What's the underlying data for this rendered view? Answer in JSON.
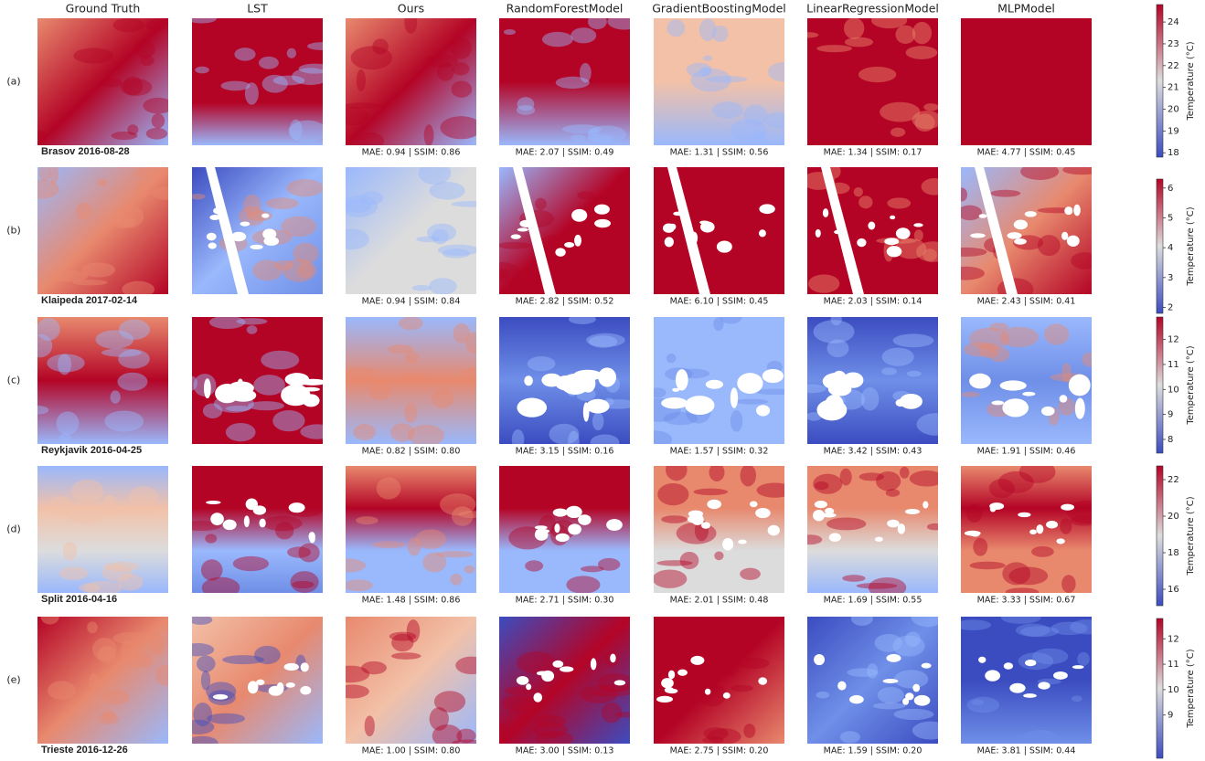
{
  "columns": [
    "Ground Truth",
    "LST",
    "Ours",
    "RandomForestModel",
    "GradientBoostingModel",
    "LinearRegressionModel",
    "MLPModel"
  ],
  "rows": [
    {
      "label": "(a)",
      "caption": "Brasov 2016-08-28",
      "metrics": [
        "MAE: 0.94 | SSIM: 0.86",
        "MAE: 2.07 | SSIM: 0.49",
        "MAE: 1.31 | SSIM: 0.56",
        "MAE: 1.34 | SSIM: 0.17",
        "MAE: 4.77 | SSIM: 0.45"
      ],
      "colorbar": {
        "label": "Temperature (°C)",
        "lim": [
          17.8,
          24.8
        ],
        "ticks": [
          18,
          19,
          20,
          21,
          22,
          23,
          24
        ]
      }
    },
    {
      "label": "(b)",
      "caption": "Klaipeda 2017-02-14",
      "metrics": [
        "MAE: 0.94 | SSIM: 0.84",
        "MAE: 2.82 | SSIM: 0.52",
        "MAE: 6.10 | SSIM: 0.45",
        "MAE: 2.03 | SSIM: 0.14",
        "MAE: 2.43 | SSIM: 0.41"
      ],
      "colorbar": {
        "label": "Temperature (°C)",
        "lim": [
          1.8,
          6.3
        ],
        "ticks": [
          2,
          3,
          4,
          5,
          6
        ]
      }
    },
    {
      "label": "(c)",
      "caption": "Reykjavik 2016-04-25",
      "metrics": [
        "MAE: 0.82 | SSIM: 0.80",
        "MAE: 3.15 | SSIM: 0.16",
        "MAE: 1.57 | SSIM: 0.32",
        "MAE: 3.42 | SSIM: 0.43",
        "MAE: 1.91 | SSIM: 0.46"
      ],
      "colorbar": {
        "label": "Temperature (°C)",
        "lim": [
          7.45,
          12.9
        ],
        "ticks": [
          8,
          9,
          10,
          11,
          12
        ]
      }
    },
    {
      "label": "(d)",
      "caption": "Split 2016-04-16",
      "metrics": [
        "MAE: 1.48 | SSIM: 0.86",
        "MAE: 2.71 | SSIM: 0.30",
        "MAE: 2.01 | SSIM: 0.48",
        "MAE: 1.69 | SSIM: 0.55",
        "MAE: 3.33 | SSIM: 0.67"
      ],
      "colorbar": {
        "label": "Temperature (°C)",
        "lim": [
          15.1,
          22.75
        ],
        "ticks": [
          16,
          18,
          20,
          22
        ]
      }
    },
    {
      "label": "(e)",
      "caption": "Trieste 2016-12-26",
      "metrics": [
        "MAE: 1.00 | SSIM: 0.80",
        "MAE: 3.00 | SSIM: 0.13",
        "MAE: 2.75 | SSIM: 0.20",
        "MAE: 1.59 | SSIM: 0.20",
        "MAE: 3.81 | SSIM: 0.44"
      ],
      "colorbar": {
        "label": "Temperature (°C)",
        "lim": [
          7.3,
          12.8
        ],
        "ticks": [
          9,
          10,
          11,
          12
        ]
      }
    }
  ]
}
